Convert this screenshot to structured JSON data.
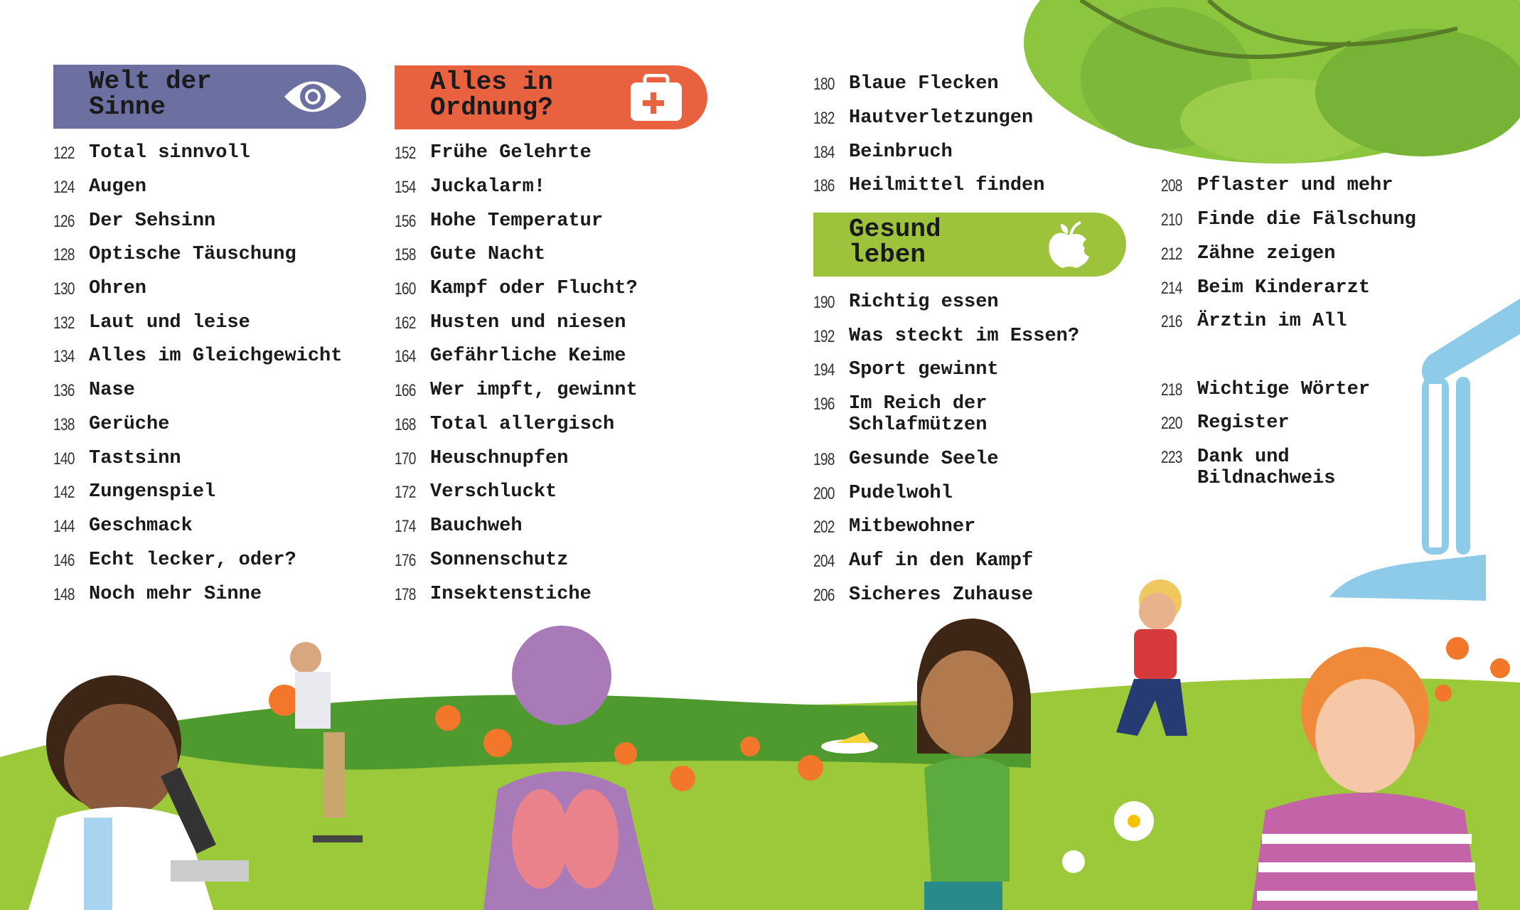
{
  "sections": [
    {
      "title": "Welt der\nSinne",
      "icon": "eye-icon",
      "color": "#6b70a0"
    },
    {
      "title": "Alles in\nOrdnung?",
      "icon": "first-aid-kit-icon",
      "color": "#e8623f"
    },
    {
      "title": "Gesund\nleben",
      "icon": "apple-icon",
      "color": "#9dc23b"
    }
  ],
  "col1": [
    {
      "page": "122",
      "title": "Total sinnvoll"
    },
    {
      "page": "124",
      "title": "Augen"
    },
    {
      "page": "126",
      "title": "Der Sehsinn"
    },
    {
      "page": "128",
      "title": "Optische Täuschung"
    },
    {
      "page": "130",
      "title": "Ohren"
    },
    {
      "page": "132",
      "title": "Laut und leise"
    },
    {
      "page": "134",
      "title": "Alles im Gleichgewicht"
    },
    {
      "page": "136",
      "title": "Nase"
    },
    {
      "page": "138",
      "title": "Gerüche"
    },
    {
      "page": "140",
      "title": "Tastsinn"
    },
    {
      "page": "142",
      "title": "Zungenspiel"
    },
    {
      "page": "144",
      "title": "Geschmack"
    },
    {
      "page": "146",
      "title": "Echt lecker, oder?"
    },
    {
      "page": "148",
      "title": "Noch mehr Sinne"
    }
  ],
  "col2": [
    {
      "page": "152",
      "title": "Frühe Gelehrte"
    },
    {
      "page": "154",
      "title": "Juckalarm!"
    },
    {
      "page": "156",
      "title": "Hohe Temperatur"
    },
    {
      "page": "158",
      "title": "Gute Nacht"
    },
    {
      "page": "160",
      "title": "Kampf oder Flucht?"
    },
    {
      "page": "162",
      "title": "Husten und niesen"
    },
    {
      "page": "164",
      "title": "Gefährliche Keime"
    },
    {
      "page": "166",
      "title": "Wer impft, gewinnt"
    },
    {
      "page": "168",
      "title": "Total allergisch"
    },
    {
      "page": "170",
      "title": "Heuschnupfen"
    },
    {
      "page": "172",
      "title": "Verschluckt"
    },
    {
      "page": "174",
      "title": "Bauchweh"
    },
    {
      "page": "176",
      "title": "Sonnenschutz"
    },
    {
      "page": "178",
      "title": "Insektenstiche"
    }
  ],
  "col3a": [
    {
      "page": "180",
      "title": "Blaue Flecken"
    },
    {
      "page": "182",
      "title": "Hautverletzungen"
    },
    {
      "page": "184",
      "title": "Beinbruch"
    },
    {
      "page": "186",
      "title": "Heilmittel finden"
    }
  ],
  "col3b": [
    {
      "page": "190",
      "title": "Richtig essen"
    },
    {
      "page": "192",
      "title": "Was steckt im Essen?"
    },
    {
      "page": "194",
      "title": "Sport gewinnt"
    },
    {
      "page": "196",
      "title": "Im Reich der\nSchlafmützen"
    },
    {
      "page": "198",
      "title": "Gesunde Seele"
    },
    {
      "page": "200",
      "title": "Pudelwohl"
    },
    {
      "page": "202",
      "title": "Mitbewohner"
    },
    {
      "page": "204",
      "title": "Auf in den Kampf"
    },
    {
      "page": "206",
      "title": "Sicheres Zuhause"
    }
  ],
  "col4a": [
    {
      "page": "208",
      "title": "Pflaster und mehr"
    },
    {
      "page": "210",
      "title": "Finde die Fälschung"
    },
    {
      "page": "212",
      "title": "Zähne zeigen"
    },
    {
      "page": "214",
      "title": "Beim Kinderarzt"
    },
    {
      "page": "216",
      "title": "Ärztin im All"
    }
  ],
  "col4b": [
    {
      "page": "218",
      "title": "Wichtige Wörter"
    },
    {
      "page": "220",
      "title": "Register"
    },
    {
      "page": "223",
      "title": "Dank und\nBildnachweis"
    }
  ]
}
